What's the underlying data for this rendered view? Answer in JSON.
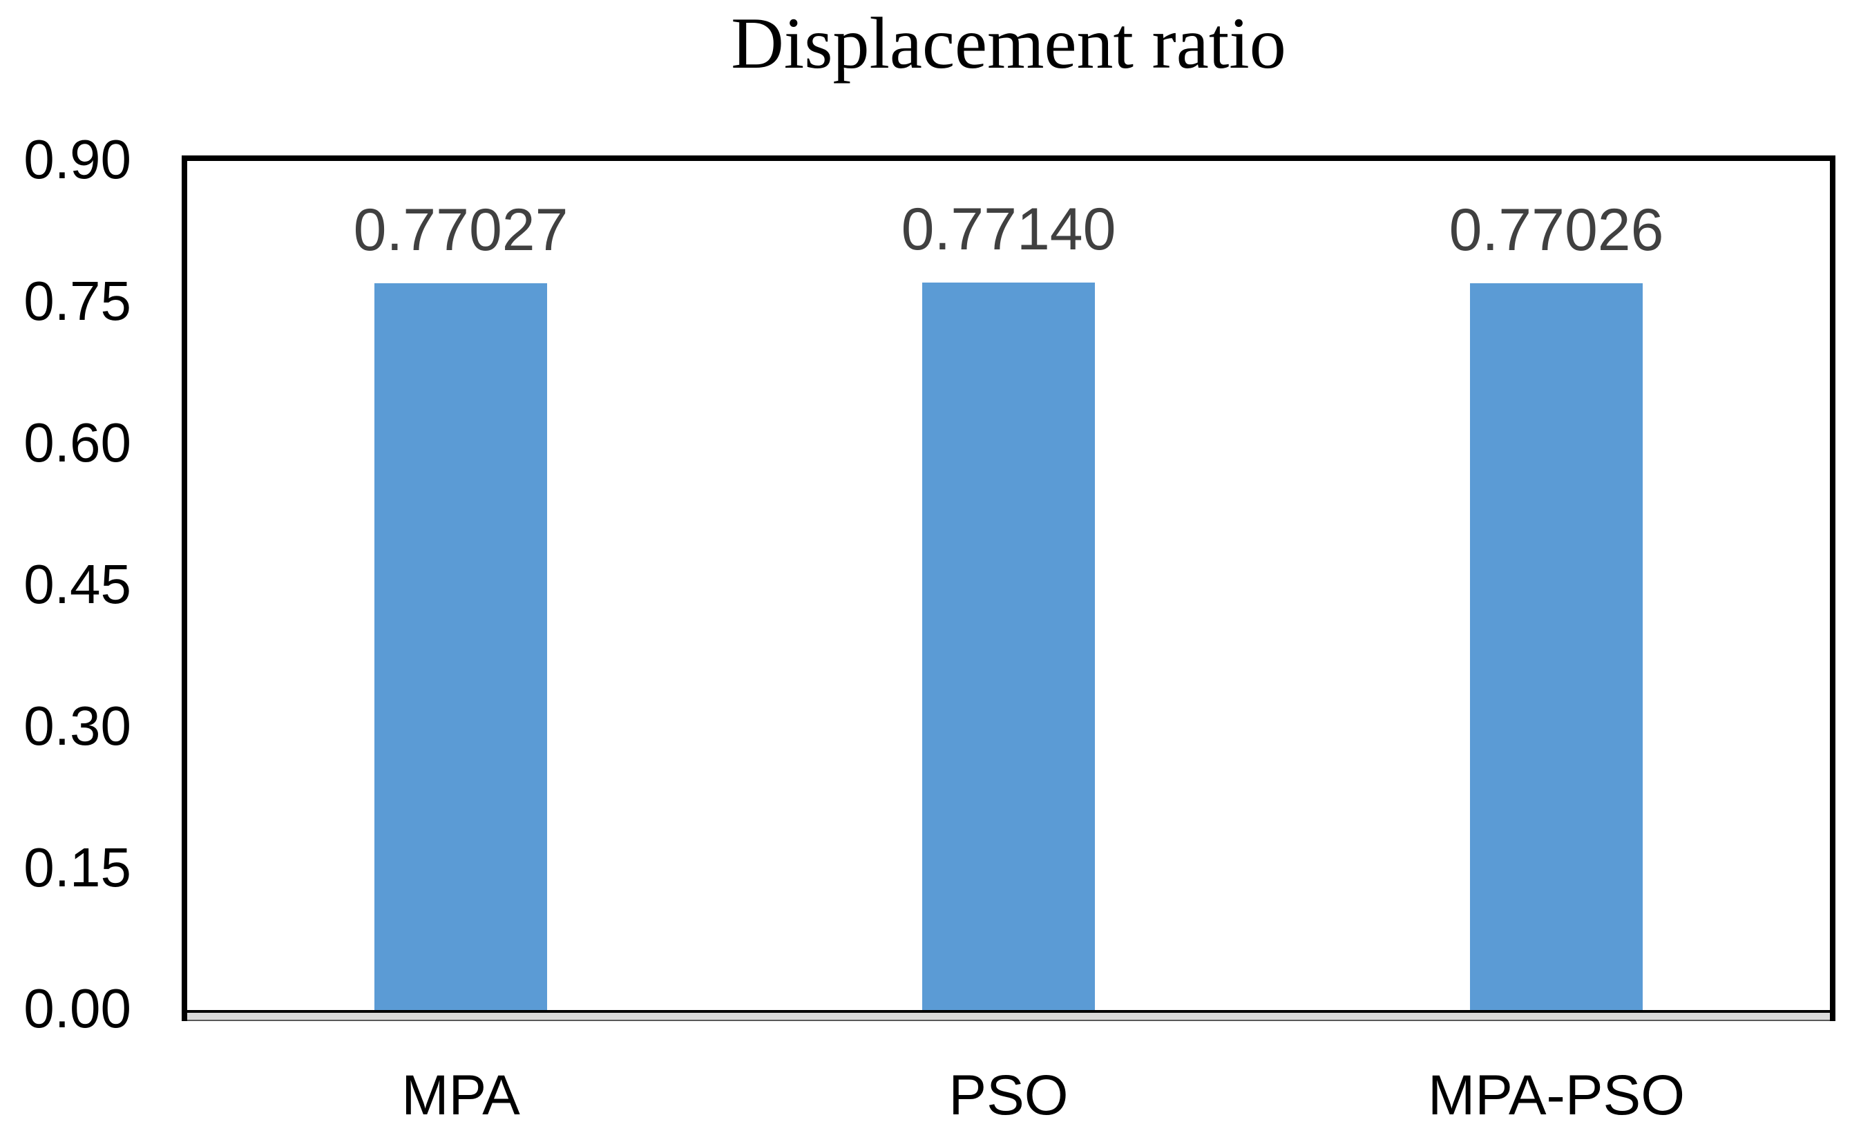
{
  "title": "Displacement ratio",
  "colors": {
    "bar_fill": "#5B9BD5",
    "data_label_text": "#404040",
    "axis_text": "#000000",
    "title_text": "#000000",
    "plot_border": "#000000",
    "axis_strip_fill": "#D9D9D9",
    "axis_strip_top_line": "#000000",
    "axis_strip_bottom_edge": "#595959"
  },
  "chart_data": {
    "type": "bar",
    "title": "Displacement ratio",
    "categories": [
      "MPA",
      "PSO",
      "MPA-PSO"
    ],
    "values": [
      0.77027,
      0.7714,
      0.77026
    ],
    "data_labels": [
      "0.77027",
      "0.77140",
      "0.77026"
    ],
    "xlabel": "",
    "ylabel": "",
    "ylim": [
      0.0,
      0.9
    ],
    "ytick_step": 0.15,
    "yticks": [
      "0.00",
      "0.15",
      "0.30",
      "0.45",
      "0.60",
      "0.75",
      "0.90"
    ],
    "grid": false,
    "legend": "none",
    "bar_color": "#5B9BD5"
  }
}
